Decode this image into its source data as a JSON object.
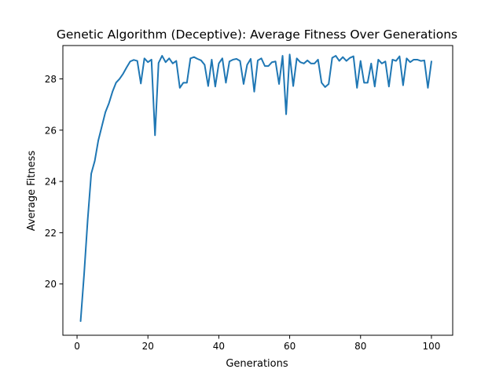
{
  "chart_data": {
    "type": "line",
    "title": "Genetic Algorithm (Deceptive): Average Fitness Over Generations",
    "xlabel": "Generations",
    "ylabel": "Average Fitness",
    "xlim": [
      -4,
      106
    ],
    "ylim": [
      18.0,
      29.3
    ],
    "xticks": [
      0,
      20,
      40,
      60,
      80,
      100
    ],
    "yticks": [
      20,
      22,
      24,
      26,
      28
    ],
    "grid": false,
    "legend": "none",
    "series": [
      {
        "color": "#1f77b4",
        "x": [
          1,
          2,
          3,
          4,
          5,
          6,
          7,
          8,
          9,
          10,
          11,
          12,
          13,
          14,
          15,
          16,
          17,
          18,
          19,
          20,
          21,
          22,
          23,
          24,
          25,
          26,
          27,
          28,
          29,
          30,
          31,
          32,
          33,
          34,
          35,
          36,
          37,
          38,
          39,
          40,
          41,
          42,
          43,
          44,
          45,
          46,
          47,
          48,
          49,
          50,
          51,
          52,
          53,
          54,
          55,
          56,
          57,
          58,
          59,
          60,
          61,
          62,
          63,
          64,
          65,
          66,
          67,
          68,
          69,
          70,
          71,
          72,
          73,
          74,
          75,
          76,
          77,
          78,
          79,
          80,
          81,
          82,
          83,
          84,
          85,
          86,
          87,
          88,
          89,
          90,
          91,
          92,
          93,
          94,
          95,
          96,
          97,
          98,
          99,
          100
        ],
        "values": [
          18.55,
          20.4,
          22.5,
          24.3,
          24.8,
          25.6,
          26.15,
          26.7,
          27.05,
          27.5,
          27.85,
          28.0,
          28.2,
          28.45,
          28.68,
          28.74,
          28.7,
          27.82,
          28.8,
          28.65,
          28.75,
          25.8,
          28.62,
          28.9,
          28.65,
          28.8,
          28.6,
          28.7,
          27.65,
          27.85,
          27.85,
          28.8,
          28.85,
          28.78,
          28.72,
          28.55,
          27.72,
          28.75,
          27.7,
          28.6,
          28.8,
          27.85,
          28.68,
          28.75,
          28.78,
          28.7,
          27.8,
          28.55,
          28.78,
          27.5,
          28.72,
          28.8,
          28.5,
          28.5,
          28.65,
          28.68,
          27.8,
          28.9,
          26.62,
          28.95,
          27.72,
          28.8,
          28.65,
          28.6,
          28.72,
          28.6,
          28.6,
          28.75,
          27.85,
          27.68,
          27.8,
          28.82,
          28.9,
          28.7,
          28.85,
          28.7,
          28.82,
          28.88,
          27.65,
          28.7,
          27.85,
          27.85,
          28.6,
          27.7,
          28.75,
          28.6,
          28.68,
          27.7,
          28.75,
          28.7,
          28.88,
          27.75,
          28.8,
          28.65,
          28.75,
          28.75,
          28.7,
          28.72,
          27.65,
          28.68
        ]
      }
    ]
  }
}
